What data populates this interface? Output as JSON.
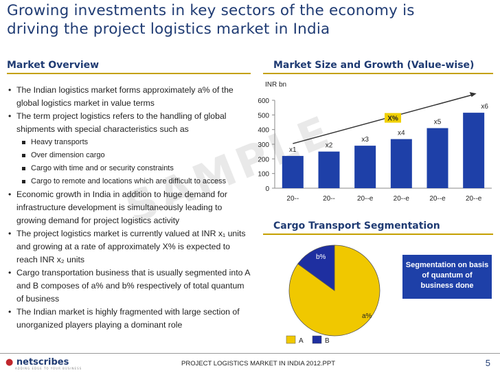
{
  "title_line1": "Growing investments in key sectors of the economy is",
  "title_line2": "driving the project logistics market in India",
  "market_overview": {
    "heading": "Market Overview",
    "bullets": [
      {
        "type": "b",
        "text": "The Indian logistics market forms approximately a% of the global logistics market in value terms"
      },
      {
        "type": "b",
        "text": "The term project logistics refers to the handling of global shipments with special characteristics such as"
      },
      {
        "type": "s",
        "text": "Heavy transports"
      },
      {
        "type": "s",
        "text": "Over dimension cargo"
      },
      {
        "type": "s",
        "text": "Cargo with time and or security constraints"
      },
      {
        "type": "s",
        "text": "Cargo to remote and locations which are difficult to access"
      },
      {
        "type": "b",
        "text": "Economic growth in India in addition to huge demand for infrastructure development is simultaneously leading to growing demand for project logistics activity"
      },
      {
        "type": "b",
        "text": "The project logistics market is currently valued at INR x₁ units and growing at a rate of approximately X% is expected to reach INR x₂ units"
      },
      {
        "type": "b",
        "text": "Cargo transportation business that is usually segmented into A and B  composes of a% and b% respectively of total quantum of business"
      },
      {
        "type": "b",
        "text": "The Indian market is highly fragmented with large section of unorganized players playing a dominant role"
      }
    ]
  },
  "watermark": "SAMPLE",
  "chart_data": [
    {
      "type": "bar",
      "title": "Market Size and Growth (Value-wise)",
      "ylabel": "INR bn",
      "ylim": [
        0,
        600
      ],
      "yticks": [
        "0",
        "100",
        "200",
        "300",
        "400",
        "500",
        "600"
      ],
      "categories": [
        "20--",
        "20--",
        "20--e",
        "20--e",
        "20--e",
        "20--e"
      ],
      "values": [
        220,
        250,
        290,
        335,
        410,
        515
      ],
      "data_labels": [
        "x1",
        "x2",
        "x3",
        "x4",
        "x5",
        "x6"
      ],
      "growth_label": "X%",
      "colors": {
        "bar": "#1e40a8",
        "badge": "#f0d000"
      }
    },
    {
      "type": "pie",
      "title": "Cargo Transport Segmentation",
      "categories": [
        "A",
        "B"
      ],
      "values": [
        85,
        15
      ],
      "labels": [
        "a%",
        "b%"
      ],
      "colors": [
        "#f0c800",
        "#1e2fa0"
      ]
    }
  ],
  "callout": [
    "Segmentation on basis",
    "of quantum of",
    "business done"
  ],
  "footer": {
    "logo": "netscribes",
    "logo_sub": "ADDING EDGE TO YOUR BUSINESS",
    "text": "PROJECT LOGISTICS MARKET IN INDIA 2012.PPT",
    "page": "5"
  }
}
